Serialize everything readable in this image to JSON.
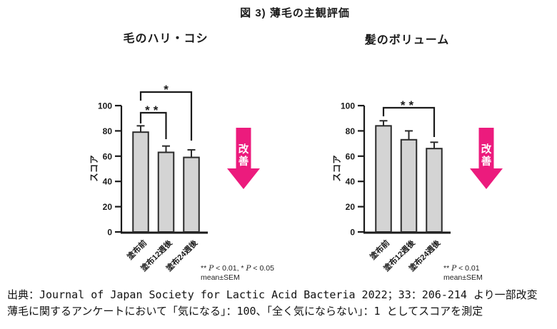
{
  "page": {
    "title": "図 3) 薄毛の主観評価",
    "source": {
      "line1": "出典：Journal of Japan Society for Lactic Acid Bacteria 2022；33：206-214 より一部改変",
      "line2": "薄毛に関するアンケートにおいて「気になる」：100、「全く気にならない」：1 としてスコアを測定"
    }
  },
  "colors": {
    "improvement_arrow_pink": "#EC1B7D",
    "bar_fill": "#D4D4D4",
    "bar_stroke": "#2B2B2B",
    "axis_black": "#1A1A1A",
    "arrow_label_white": "#FFFFFF"
  },
  "chart_data": [
    {
      "type": "bar",
      "title": "毛のハリ・コシ",
      "ylabel": "スコア",
      "categories": [
        "塗布前",
        "塗布12週後",
        "塗布24週後"
      ],
      "values": [
        79,
        63,
        59
      ],
      "errors_sem": [
        5,
        5,
        6
      ],
      "ylim": [
        0,
        100
      ],
      "yticks": [
        0,
        20,
        40,
        60,
        80,
        100
      ],
      "grid": false,
      "legend": "none",
      "significance": [
        {
          "from_index": 0,
          "to_index": 1,
          "from": "塗布前",
          "to": "塗布12週後",
          "label": "**"
        },
        {
          "from_index": 0,
          "to_index": 2,
          "from": "塗布前",
          "to": "塗布24週後",
          "label": "*"
        }
      ],
      "note_line1": "** P < 0.01, * P < 0.05",
      "note_line2": "mean±SEM",
      "arrow_label": "改善"
    },
    {
      "type": "bar",
      "title": "髪のボリューム",
      "ylabel": "スコア",
      "categories": [
        "塗布前",
        "塗布12週後",
        "塗布24週後"
      ],
      "values": [
        84,
        73,
        66
      ],
      "errors_sem": [
        4,
        7,
        5
      ],
      "ylim": [
        0,
        100
      ],
      "yticks": [
        0,
        20,
        40,
        60,
        80,
        100
      ],
      "grid": false,
      "legend": "none",
      "significance": [
        {
          "from_index": 0,
          "to_index": 2,
          "from": "塗布前",
          "to": "塗布24週後",
          "label": "**"
        }
      ],
      "note_line1": "** P < 0.01",
      "note_line2": "mean±SEM",
      "arrow_label": "改善"
    }
  ]
}
